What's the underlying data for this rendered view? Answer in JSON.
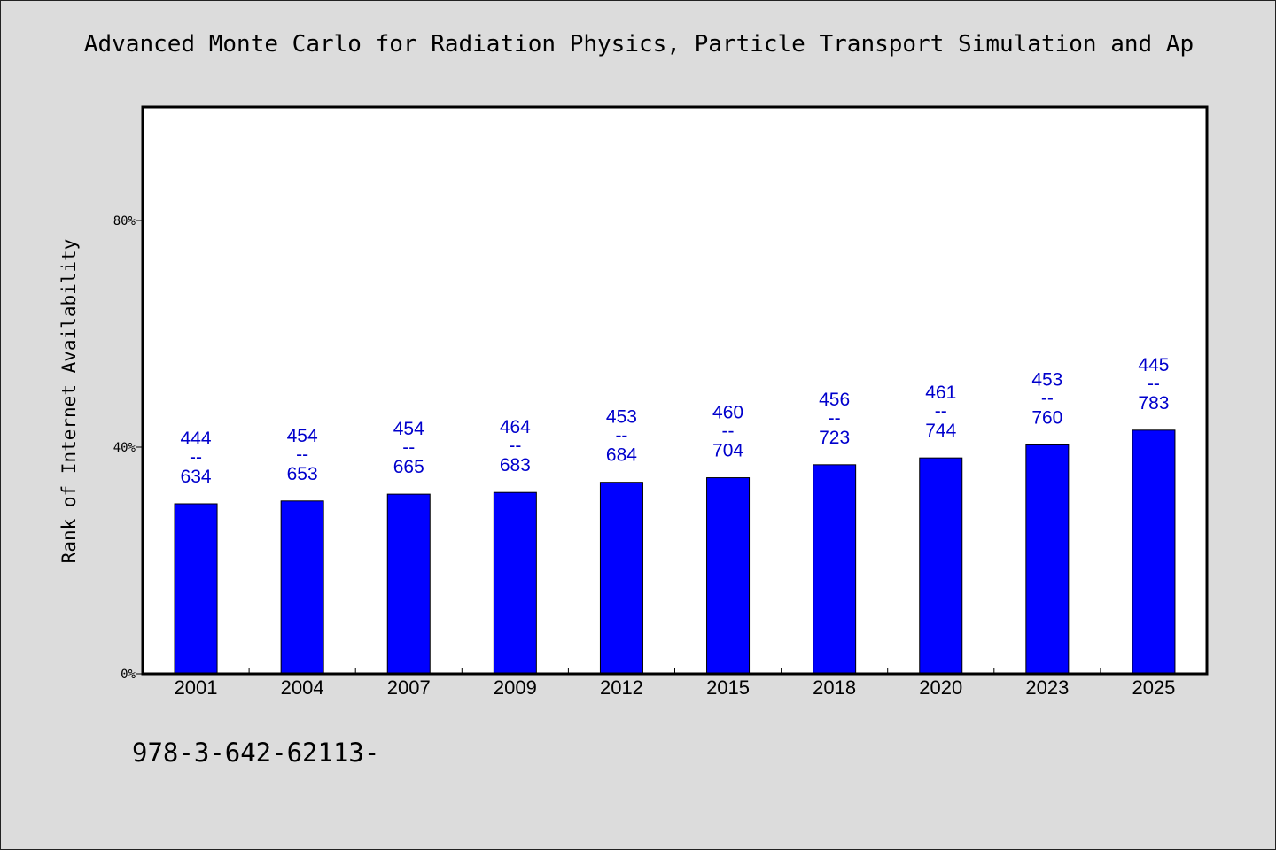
{
  "chart_data": {
    "type": "bar",
    "title": "Advanced Monte Carlo for Radiation Physics, Particle Transport Simulation and Ap",
    "ylabel": "Rank of Internet Availability",
    "xlabel": "",
    "categories": [
      "2001",
      "2004",
      "2007",
      "2009",
      "2012",
      "2015",
      "2018",
      "2020",
      "2023",
      "2025"
    ],
    "values": [
      30.0,
      30.5,
      31.7,
      32.0,
      33.8,
      34.6,
      36.9,
      38.1,
      40.4,
      43.0
    ],
    "data_labels": [
      {
        "top": "444",
        "sep": "--",
        "bottom": "634"
      },
      {
        "top": "454",
        "sep": "--",
        "bottom": "653"
      },
      {
        "top": "454",
        "sep": "--",
        "bottom": "665"
      },
      {
        "top": "464",
        "sep": "--",
        "bottom": "683"
      },
      {
        "top": "453",
        "sep": "--",
        "bottom": "684"
      },
      {
        "top": "460",
        "sep": "--",
        "bottom": "704"
      },
      {
        "top": "456",
        "sep": "--",
        "bottom": "723"
      },
      {
        "top": "461",
        "sep": "--",
        "bottom": "744"
      },
      {
        "top": "453",
        "sep": "--",
        "bottom": "760"
      },
      {
        "top": "445",
        "sep": "--",
        "bottom": "783"
      }
    ],
    "ylim": [
      0,
      100
    ],
    "yticks": [
      0,
      40,
      80
    ],
    "ytick_labels": [
      "0%",
      "40%",
      "80%"
    ],
    "grid": false,
    "colors": {
      "bar": "#0000ff",
      "label": "#0000cc",
      "background": "#dcdcdc",
      "plot_background": "#ffffff"
    }
  },
  "footer_text": "978-3-642-62113-"
}
